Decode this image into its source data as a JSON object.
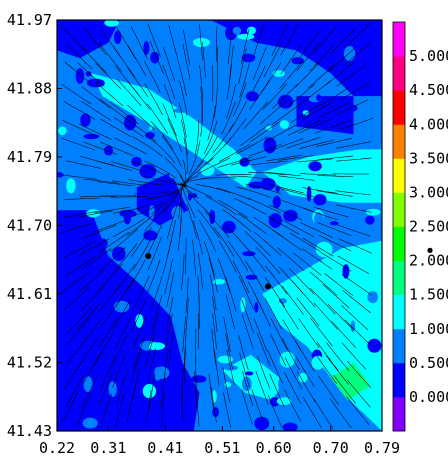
{
  "chart_data": {
    "type": "heatmap",
    "title": "",
    "xlabel": "",
    "ylabel": "",
    "xlim": [
      0.22,
      0.79
    ],
    "ylim": [
      41.43,
      41.97
    ],
    "x_ticks": [
      "0.22",
      "0.31",
      "0.41",
      "0.51",
      "0.60",
      "0.70",
      "0.79"
    ],
    "y_ticks": [
      "41.43",
      "41.52",
      "41.61",
      "41.70",
      "41.79",
      "41.88",
      "41.97"
    ],
    "overlay": "streamlines",
    "colorbar": {
      "levels": [
        "0.000",
        "0.500",
        "1.000",
        "1.500",
        "2.000",
        "2.500",
        "3.000",
        "3.500",
        "4.000",
        "4.500",
        "5.000"
      ],
      "colors": [
        "#8000ff",
        "#0000ff",
        "#0080ff",
        "#00ffff",
        "#00ff80",
        "#00ff00",
        "#80ff00",
        "#ffff00",
        "#ff8000",
        "#ff0000",
        "#ff0080",
        "#ff00ff"
      ]
    },
    "field_colors": {
      "low": "#0000ff",
      "mid": "#0080ff",
      "high": "#00ffff",
      "peak": "#00ff80"
    },
    "regions": [
      {
        "level": "high",
        "polygon": [
          [
            0.28,
            41.9
          ],
          [
            0.38,
            41.88
          ],
          [
            0.46,
            41.84
          ],
          [
            0.53,
            41.8
          ],
          [
            0.57,
            41.77
          ],
          [
            0.55,
            41.75
          ],
          [
            0.47,
            41.79
          ],
          [
            0.39,
            41.83
          ],
          [
            0.3,
            41.87
          ]
        ]
      },
      {
        "level": "high",
        "polygon": [
          [
            0.58,
            41.77
          ],
          [
            0.66,
            41.79
          ],
          [
            0.75,
            41.8
          ],
          [
            0.79,
            41.8
          ],
          [
            0.79,
            41.73
          ],
          [
            0.72,
            41.73
          ],
          [
            0.63,
            41.74
          ]
        ]
      },
      {
        "level": "high",
        "polygon": [
          [
            0.58,
            41.61
          ],
          [
            0.65,
            41.64
          ],
          [
            0.72,
            41.67
          ],
          [
            0.79,
            41.68
          ],
          [
            0.79,
            41.43
          ],
          [
            0.72,
            41.48
          ],
          [
            0.66,
            41.54
          ],
          [
            0.61,
            41.57
          ]
        ]
      },
      {
        "level": "high",
        "polygon": [
          [
            0.51,
            41.51
          ],
          [
            0.56,
            41.53
          ],
          [
            0.61,
            41.5
          ],
          [
            0.6,
            41.47
          ],
          [
            0.55,
            41.48
          ]
        ]
      },
      {
        "level": "peak",
        "polygon": [
          [
            0.7,
            41.5
          ],
          [
            0.74,
            41.52
          ],
          [
            0.77,
            41.49
          ],
          [
            0.73,
            41.47
          ]
        ]
      },
      {
        "level": "low",
        "polygon": [
          [
            0.22,
            41.72
          ],
          [
            0.28,
            41.72
          ],
          [
            0.31,
            41.66
          ],
          [
            0.37,
            41.62
          ],
          [
            0.42,
            41.58
          ],
          [
            0.44,
            41.52
          ],
          [
            0.47,
            41.48
          ],
          [
            0.46,
            41.43
          ],
          [
            0.22,
            41.43
          ]
        ]
      },
      {
        "level": "low",
        "polygon": [
          [
            0.49,
            41.97
          ],
          [
            0.79,
            41.97
          ],
          [
            0.79,
            41.87
          ],
          [
            0.74,
            41.87
          ],
          [
            0.7,
            41.9
          ],
          [
            0.64,
            41.93
          ],
          [
            0.57,
            41.94
          ]
        ]
      },
      {
        "level": "low",
        "polygon": [
          [
            0.22,
            41.97
          ],
          [
            0.33,
            41.97
          ],
          [
            0.31,
            41.94
          ],
          [
            0.26,
            41.92
          ],
          [
            0.22,
            41.93
          ]
        ]
      },
      {
        "level": "low",
        "polygon": [
          [
            0.36,
            41.75
          ],
          [
            0.42,
            41.77
          ],
          [
            0.45,
            41.72
          ],
          [
            0.4,
            41.7
          ],
          [
            0.36,
            41.72
          ]
        ]
      },
      {
        "level": "low",
        "polygon": [
          [
            0.64,
            41.87
          ],
          [
            0.74,
            41.87
          ],
          [
            0.74,
            41.82
          ],
          [
            0.64,
            41.83
          ]
        ]
      }
    ],
    "markers": [
      {
        "symbol": "dot",
        "x": 0.38,
        "y": 41.66
      },
      {
        "symbol": "dot",
        "x": 0.59,
        "y": 41.62
      }
    ],
    "side_marker": {
      "symbol": "dot",
      "value": 2.15
    }
  }
}
